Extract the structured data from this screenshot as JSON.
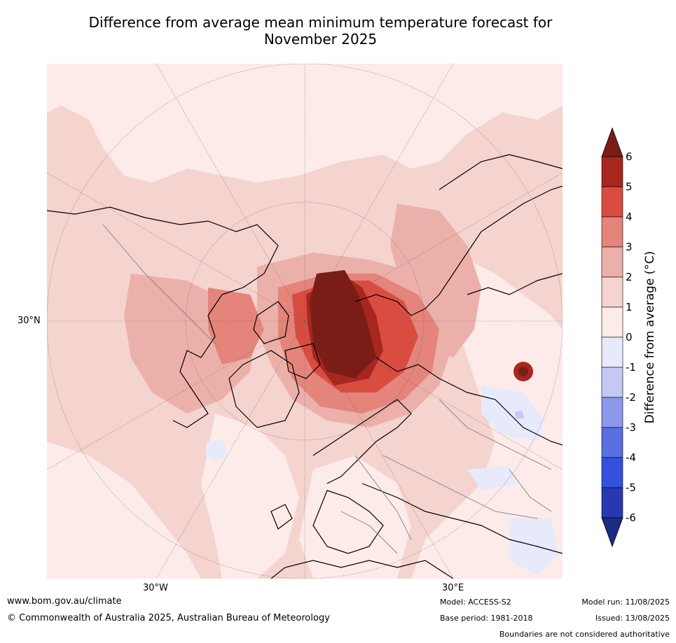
{
  "title": {
    "line1": "Difference from average mean minimum temperature forecast for",
    "line2": "November 2025"
  },
  "map": {
    "projection": "north polar stereographic",
    "labels": {
      "lat_30n": "30°N",
      "lon_30w": "30°W",
      "lon_30e": "30°E"
    },
    "colors": {
      "anom_0_1": "#fcebe8",
      "anom_1_2": "#f5d3cf",
      "anom_2_3": "#ecb0aa",
      "anom_3_4": "#e4847b",
      "anom_4_5": "#d94d40",
      "anom_5_6": "#a7271f",
      "anom_gt6": "#7a1d17",
      "anom_neg_0_1": "#e6eafb",
      "anom_neg_1_2": "#c3c9f3"
    }
  },
  "colorbar": {
    "label": "Difference from average (°C)",
    "ticks": [
      "6",
      "5",
      "4",
      "3",
      "2",
      "1",
      "0",
      "-1",
      "-2",
      "-3",
      "-4",
      "-5",
      "-6"
    ],
    "bins": [
      {
        "from": 5,
        "to": 6,
        "color": "#a7271f"
      },
      {
        "from": 4,
        "to": 5,
        "color": "#d94d40"
      },
      {
        "from": 3,
        "to": 4,
        "color": "#e4847b"
      },
      {
        "from": 2,
        "to": 3,
        "color": "#ecb0aa"
      },
      {
        "from": 1,
        "to": 2,
        "color": "#f5d3cf"
      },
      {
        "from": 0,
        "to": 1,
        "color": "#fcebe8"
      },
      {
        "from": -1,
        "to": 0,
        "color": "#e6eafb"
      },
      {
        "from": -2,
        "to": -1,
        "color": "#c3c9f3"
      },
      {
        "from": -3,
        "to": -2,
        "color": "#8b98ec"
      },
      {
        "from": -4,
        "to": -3,
        "color": "#5a6fe0"
      },
      {
        "from": -5,
        "to": -4,
        "color": "#3350de"
      },
      {
        "from": -6,
        "to": -5,
        "color": "#2839b0"
      }
    ],
    "over_color": "#7a1d17",
    "under_color": "#1e2b82"
  },
  "footer": {
    "url": "www.bom.gov.au/climate",
    "copyright": "© Commonwealth of Australia 2025, Australian Bureau of Meteorology",
    "model": "Model: ACCESS-S2",
    "base_period": "Base period: 1981-2018",
    "model_run": "Model run: 11/08/2025",
    "issued": "Issued: 13/08/2025",
    "disclaimer": "Boundaries are not considered authoritative"
  }
}
